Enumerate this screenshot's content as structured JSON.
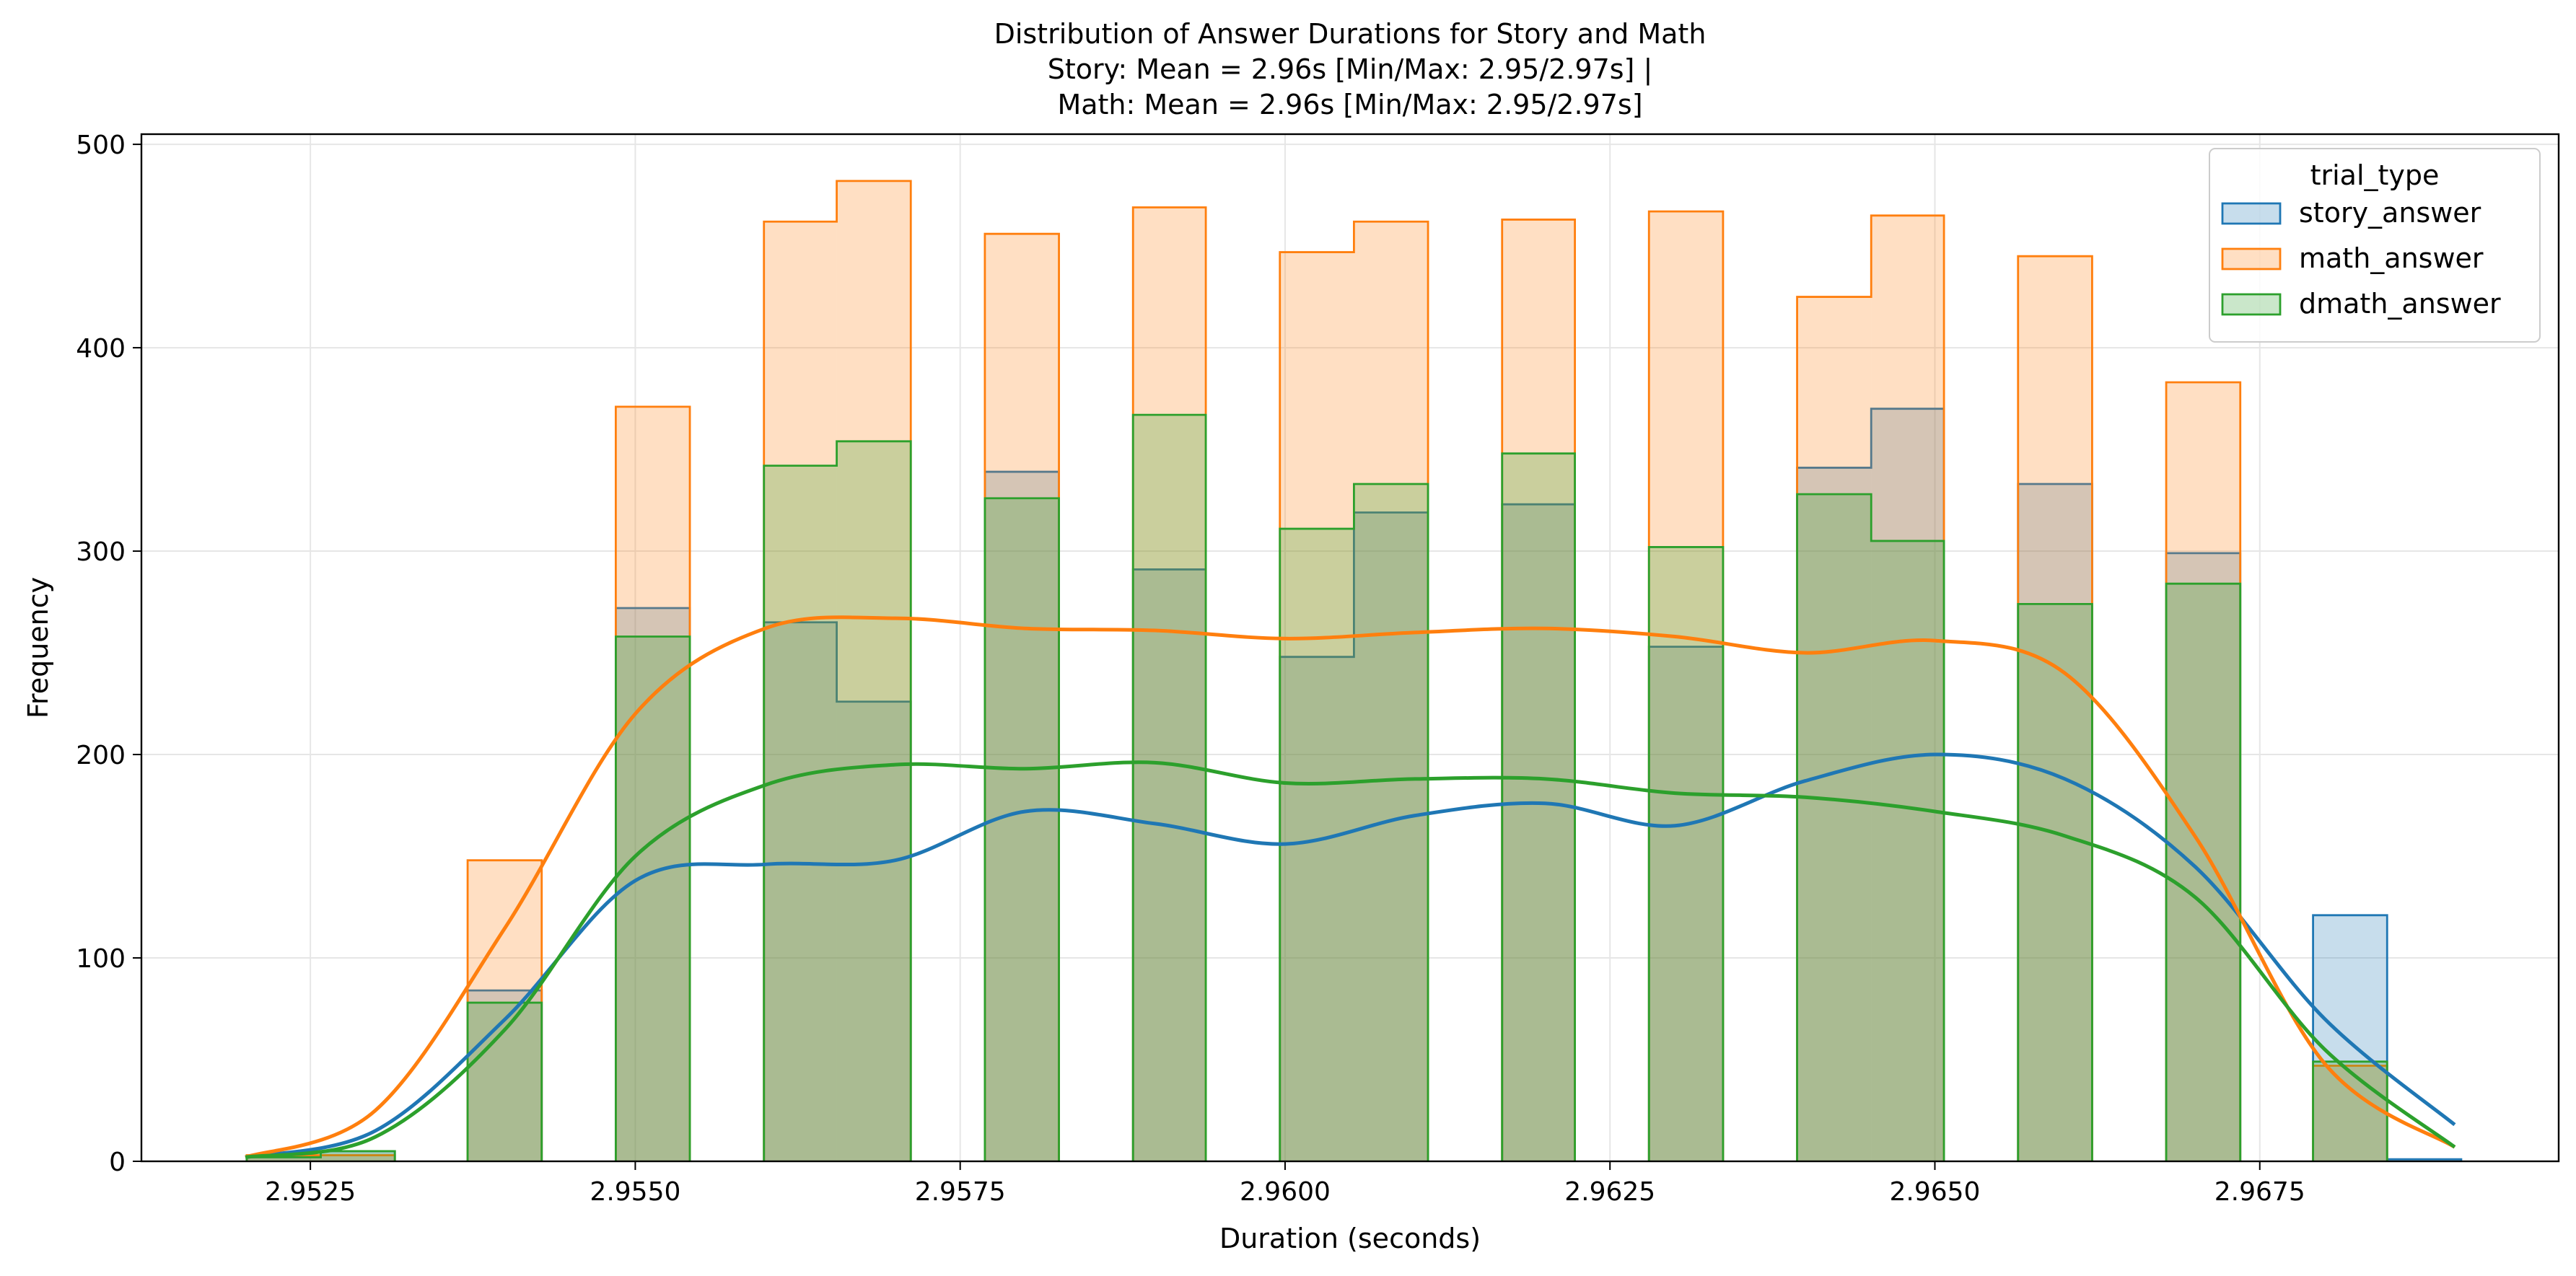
{
  "chart_data": {
    "type": "histogram",
    "title_lines": [
      "Distribution of Answer Durations for Story and Math",
      "Story: Mean = 2.96s [Min/Max: 2.95/2.97s] |",
      "Math: Mean = 2.96s [Min/Max: 2.95/2.97s]"
    ],
    "xlabel": "Duration (seconds)",
    "ylabel": "Frequency",
    "xlim": [
      2.9512,
      2.9698
    ],
    "ylim": [
      0,
      505
    ],
    "xticks": [
      2.9525,
      2.955,
      2.9575,
      2.96,
      2.9625,
      2.965,
      2.9675
    ],
    "xtick_labels": [
      "2.9525",
      "2.9550",
      "2.9575",
      "2.9600",
      "2.9625",
      "2.9650",
      "2.9675"
    ],
    "yticks": [
      0,
      100,
      200,
      300,
      400,
      500
    ],
    "ytick_labels": [
      "0",
      "100",
      "200",
      "300",
      "400",
      "500"
    ],
    "grid": true,
    "legend": {
      "title": "trial_type",
      "position": "upper right"
    },
    "bin_edges": [
      2.95201,
      2.95258,
      2.95315,
      2.95371,
      2.95428,
      2.95485,
      2.95542,
      2.95599,
      2.95655,
      2.95712,
      2.95769,
      2.95826,
      2.95883,
      2.95939,
      2.95996,
      2.96053,
      2.9611,
      2.96167,
      2.96223,
      2.9628,
      2.96337,
      2.96394,
      2.96451,
      2.96507,
      2.96564,
      2.96621,
      2.96678,
      2.96735,
      2.96791,
      2.96848,
      2.96905
    ],
    "series": [
      {
        "name": "story_answer",
        "color": "#1f77b4",
        "counts": [
          2,
          5,
          0,
          84,
          0,
          272,
          0,
          265,
          226,
          0,
          339,
          0,
          291,
          0,
          248,
          319,
          0,
          323,
          0,
          253,
          0,
          341,
          370,
          0,
          333,
          0,
          299,
          0,
          121,
          1
        ],
        "kde_x": [
          2.952,
          2.953,
          2.954,
          2.955,
          2.956,
          2.957,
          2.958,
          2.959,
          2.96,
          2.961,
          2.962,
          2.963,
          2.964,
          2.965,
          2.966,
          2.967,
          2.968,
          2.969
        ],
        "kde_y": [
          2,
          15,
          70,
          138,
          146,
          148,
          172,
          166,
          156,
          170,
          176,
          165,
          187,
          200,
          188,
          145,
          70,
          18
        ]
      },
      {
        "name": "math_answer",
        "color": "#ff7f0e",
        "counts": [
          3,
          3,
          0,
          148,
          0,
          371,
          0,
          462,
          482,
          0,
          456,
          0,
          469,
          0,
          447,
          462,
          0,
          463,
          0,
          467,
          0,
          425,
          465,
          0,
          445,
          0,
          383,
          0,
          47,
          0
        ],
        "kde_x": [
          2.952,
          2.953,
          2.954,
          2.955,
          2.956,
          2.957,
          2.958,
          2.959,
          2.96,
          2.961,
          2.962,
          2.963,
          2.964,
          2.965,
          2.966,
          2.967,
          2.968,
          2.969
        ],
        "kde_y": [
          2,
          25,
          115,
          220,
          262,
          267,
          262,
          261,
          257,
          260,
          262,
          258,
          250,
          256,
          240,
          160,
          48,
          7
        ]
      },
      {
        "name": "dmath_answer",
        "color": "#2ca02c",
        "counts": [
          2,
          5,
          0,
          78,
          0,
          258,
          0,
          342,
          354,
          0,
          326,
          0,
          367,
          0,
          311,
          333,
          0,
          348,
          0,
          302,
          0,
          328,
          305,
          0,
          274,
          0,
          284,
          0,
          49,
          0
        ],
        "kde_x": [
          2.952,
          2.953,
          2.954,
          2.955,
          2.956,
          2.957,
          2.958,
          2.959,
          2.96,
          2.961,
          2.962,
          2.963,
          2.964,
          2.965,
          2.966,
          2.967,
          2.968,
          2.969
        ],
        "kde_y": [
          2,
          12,
          65,
          150,
          185,
          195,
          193,
          196,
          186,
          188,
          188,
          181,
          179,
          172,
          160,
          130,
          55,
          7
        ]
      }
    ]
  }
}
